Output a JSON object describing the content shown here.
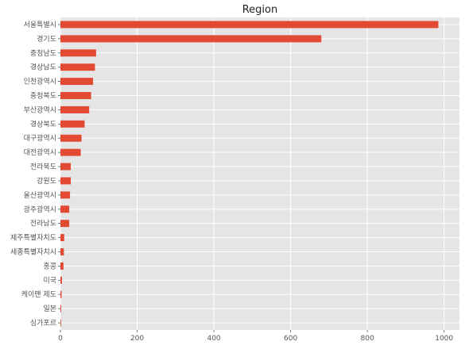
{
  "chart_data": {
    "type": "bar",
    "orientation": "horizontal",
    "title": "Region",
    "xlabel": "",
    "ylabel": "",
    "categories": [
      "서울특별시",
      "경기도",
      "충청남도",
      "경상남도",
      "인천광역시",
      "충청북도",
      "부산광역시",
      "경상북도",
      "대구광역시",
      "대전광역시",
      "전라북도",
      "강원도",
      "울산광역시",
      "광주광역시",
      "전라남도",
      "제주특별자치도",
      "세종특별자치시",
      "홍콩",
      "미국",
      "케이맨 제도",
      "일본",
      "싱가포르"
    ],
    "values": [
      985,
      680,
      93,
      90,
      85,
      80,
      75,
      63,
      55,
      53,
      27,
      27,
      25,
      23,
      23,
      10,
      9,
      8,
      4,
      3,
      2,
      1
    ],
    "xlim": [
      0,
      1040
    ],
    "xticks": [
      0,
      200,
      400,
      600,
      800,
      1000
    ],
    "grid": true,
    "colors": {
      "bar": "#e24a33",
      "background": "#e5e5e5",
      "grid": "#ffffff"
    }
  }
}
